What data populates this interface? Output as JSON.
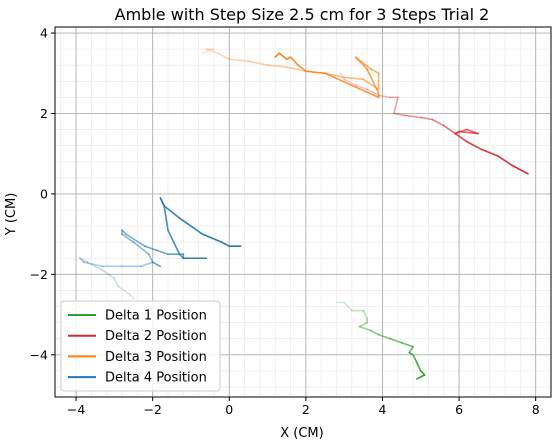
{
  "chart_data": {
    "type": "line",
    "title": "Amble with Step Size 2.5 cm for 3 Steps Trial 2",
    "xlabel": "X (CM)",
    "ylabel": "Y (CM)",
    "xlim": [
      -4.55,
      8.4
    ],
    "ylim": [
      -5.05,
      4.15
    ],
    "xticks": [
      -4,
      -2,
      0,
      2,
      4,
      6,
      8
    ],
    "yticks": [
      -4,
      -2,
      0,
      2,
      4
    ],
    "xtick_labels": [
      "−4",
      "−2",
      "0",
      "2",
      "4",
      "6",
      "8"
    ],
    "ytick_labels": [
      "−4",
      "−2",
      "0",
      "2",
      "4"
    ],
    "grid": true,
    "minor_grid": true,
    "legend_position": "lower-left",
    "series": [
      {
        "name": "Delta 1 Position",
        "color": "#2ca02c",
        "points": [
          [
            2.8,
            -2.7
          ],
          [
            3.0,
            -2.7
          ],
          [
            3.2,
            -2.9
          ],
          [
            3.5,
            -2.9
          ],
          [
            3.6,
            -3.1
          ],
          [
            3.6,
            -3.2
          ],
          [
            3.4,
            -3.3
          ],
          [
            3.7,
            -3.4
          ],
          [
            3.9,
            -3.5
          ],
          [
            4.2,
            -3.6
          ],
          [
            4.5,
            -3.7
          ],
          [
            4.8,
            -3.8
          ],
          [
            4.7,
            -3.95
          ],
          [
            4.8,
            -4.0
          ],
          [
            4.9,
            -4.2
          ],
          [
            5.0,
            -4.4
          ],
          [
            5.1,
            -4.5
          ],
          [
            4.9,
            -4.6
          ]
        ]
      },
      {
        "name": "Delta 2 Position",
        "color": "#d62728",
        "points": [
          [
            2.9,
            3.0
          ],
          [
            3.0,
            2.85
          ],
          [
            3.3,
            2.7
          ],
          [
            3.6,
            2.6
          ],
          [
            3.9,
            2.45
          ],
          [
            4.2,
            2.4
          ],
          [
            4.4,
            2.4
          ],
          [
            4.3,
            2.0
          ],
          [
            4.6,
            1.95
          ],
          [
            5.0,
            1.9
          ],
          [
            5.3,
            1.85
          ],
          [
            5.6,
            1.7
          ],
          [
            5.9,
            1.5
          ],
          [
            6.2,
            1.6
          ],
          [
            6.5,
            1.5
          ],
          [
            6.0,
            1.55
          ],
          [
            5.9,
            1.5
          ],
          [
            6.2,
            1.3
          ],
          [
            6.6,
            1.1
          ],
          [
            7.0,
            0.95
          ],
          [
            7.4,
            0.7
          ],
          [
            7.8,
            0.5
          ]
        ]
      },
      {
        "name": "Delta 3 Position",
        "color": "#ff7f0e",
        "points": [
          [
            -0.7,
            3.5
          ],
          [
            -0.4,
            3.6
          ],
          [
            -0.6,
            3.6
          ],
          [
            -0.3,
            3.5
          ],
          [
            -0.1,
            3.4
          ],
          [
            0.0,
            3.35
          ],
          [
            0.5,
            3.3
          ],
          [
            1.0,
            3.2
          ],
          [
            1.5,
            3.15
          ],
          [
            2.0,
            3.05
          ],
          [
            2.5,
            3.0
          ],
          [
            3.0,
            2.9
          ],
          [
            3.5,
            2.85
          ],
          [
            3.9,
            2.6
          ],
          [
            3.9,
            3.0
          ],
          [
            3.7,
            3.1
          ],
          [
            3.3,
            3.4
          ],
          [
            3.6,
            3.1
          ],
          [
            3.9,
            2.5
          ],
          [
            3.9,
            2.4
          ],
          [
            2.5,
            3.0
          ],
          [
            2.0,
            3.05
          ],
          [
            1.8,
            3.2
          ],
          [
            1.6,
            3.4
          ],
          [
            1.5,
            3.35
          ],
          [
            1.3,
            3.5
          ],
          [
            1.2,
            3.4
          ]
        ]
      },
      {
        "name": "Delta 4 Position",
        "color": "#1f77b4",
        "points": [
          [
            -2.5,
            -2.6
          ],
          [
            -2.6,
            -2.5
          ],
          [
            -2.9,
            -2.3
          ],
          [
            -3.0,
            -2.1
          ],
          [
            -3.3,
            -1.9
          ],
          [
            -3.7,
            -1.7
          ],
          [
            -3.9,
            -1.6
          ],
          [
            -3.8,
            -1.7
          ],
          [
            -3.3,
            -1.8
          ],
          [
            -2.8,
            -1.8
          ],
          [
            -2.3,
            -1.8
          ],
          [
            -2.0,
            -1.7
          ],
          [
            -1.8,
            -1.8
          ],
          [
            -2.0,
            -1.7
          ],
          [
            -2.1,
            -1.5
          ],
          [
            -2.5,
            -1.2
          ],
          [
            -2.8,
            -1.0
          ],
          [
            -2.8,
            -0.9
          ],
          [
            -2.7,
            -1.0
          ],
          [
            -2.2,
            -1.3
          ],
          [
            -1.9,
            -1.4
          ],
          [
            -1.6,
            -1.5
          ],
          [
            -1.2,
            -1.5
          ],
          [
            -1.2,
            -1.6
          ],
          [
            -0.7,
            -1.6
          ],
          [
            -0.6,
            -1.6
          ],
          [
            -1.2,
            -1.6
          ],
          [
            -1.3,
            -1.5
          ],
          [
            -1.6,
            -0.9
          ],
          [
            -1.7,
            -0.3
          ],
          [
            -1.8,
            -0.1
          ],
          [
            -1.7,
            -0.3
          ],
          [
            -1.3,
            -0.6
          ],
          [
            -0.7,
            -1.0
          ],
          [
            -0.2,
            -1.2
          ],
          [
            0.0,
            -1.3
          ],
          [
            0.3,
            -1.3
          ]
        ]
      }
    ]
  }
}
